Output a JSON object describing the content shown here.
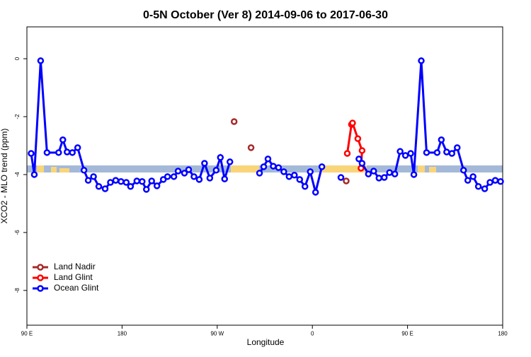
{
  "chart_data": {
    "type": "line",
    "title": "0-5N October (Ver 8)   2014-09-06 to 2017-06-30",
    "x_label": "Longitude",
    "y_label": "XCO2 - MLO trend (ppm)",
    "xlim": [
      90,
      540
    ],
    "ylim": [
      -9.2,
      1.1
    ],
    "xticks": [
      {
        "value": 90,
        "label": "90 E"
      },
      180,
      {
        "value": 270,
        "label": "90 W"
      },
      {
        "value": 360,
        "label": "0"
      },
      {
        "value": 450,
        "label": "90 E"
      },
      {
        "value": 540,
        "label": "180"
      }
    ],
    "yticks": [
      0,
      -2,
      -4,
      -6,
      -8
    ],
    "legend": "bottom-left",
    "series": [
      {
        "name": "Land Nadir",
        "color": "#a52a2a",
        "x": [
          286,
          302,
          392
        ],
        "values": [
          -2.17,
          -3.07,
          -4.22
        ]
      },
      {
        "name": "Land Glint",
        "color": "#ff0000",
        "x": [
          393,
          397,
          398,
          403,
          407,
          406
        ],
        "values": [
          -3.27,
          -2.27,
          -2.22,
          -2.76,
          -3.17,
          -3.78
        ]
      },
      {
        "name": "Ocean Glint",
        "color": "#0000ff",
        "x": [
          94,
          97,
          103,
          109,
          120,
          124,
          128,
          133,
          138,
          144,
          148,
          153,
          158,
          164,
          169,
          174,
          179,
          184,
          188,
          194,
          199,
          203,
          208,
          213,
          219,
          223,
          229,
          233,
          239,
          243,
          248,
          253,
          258,
          263,
          269,
          273,
          277,
          282,
          310,
          314,
          318,
          323,
          328,
          333,
          338,
          343,
          348,
          353,
          358,
          363,
          369,
          387,
          404,
          407,
          413,
          418,
          423,
          428,
          433,
          438,
          443,
          448,
          453,
          456,
          463,
          468,
          478,
          482,
          487,
          492,
          497,
          503,
          507,
          512,
          517,
          523,
          528,
          533,
          538
        ],
        "values": [
          -3.27,
          -4.0,
          -0.07,
          -3.24,
          -3.24,
          -2.8,
          -3.22,
          -3.24,
          -3.07,
          -3.85,
          -4.2,
          -4.07,
          -4.41,
          -4.49,
          -4.27,
          -4.2,
          -4.24,
          -4.27,
          -4.41,
          -4.22,
          -4.24,
          -4.51,
          -4.22,
          -4.39,
          -4.17,
          -4.07,
          -4.07,
          -3.88,
          -3.95,
          -3.83,
          -4.07,
          -4.17,
          -3.61,
          -4.12,
          -3.85,
          -3.41,
          -4.15,
          -3.56,
          -3.95,
          -3.73,
          -3.46,
          -3.71,
          -3.76,
          -3.9,
          -4.07,
          -4.02,
          -4.17,
          -4.41,
          -3.9,
          -4.61,
          -3.73,
          -4.1,
          -3.46,
          -3.61,
          -3.98,
          -3.88,
          -4.12,
          -4.1,
          -3.93,
          -3.98,
          -3.2,
          -3.34,
          -3.27,
          -4.0,
          -0.07,
          -3.24,
          -3.24,
          -2.8,
          -3.22,
          -3.27,
          -3.07,
          -3.85,
          -4.2,
          -4.07,
          -4.41,
          -4.49,
          -4.27,
          -4.2,
          -4.24
        ]
      }
    ]
  }
}
